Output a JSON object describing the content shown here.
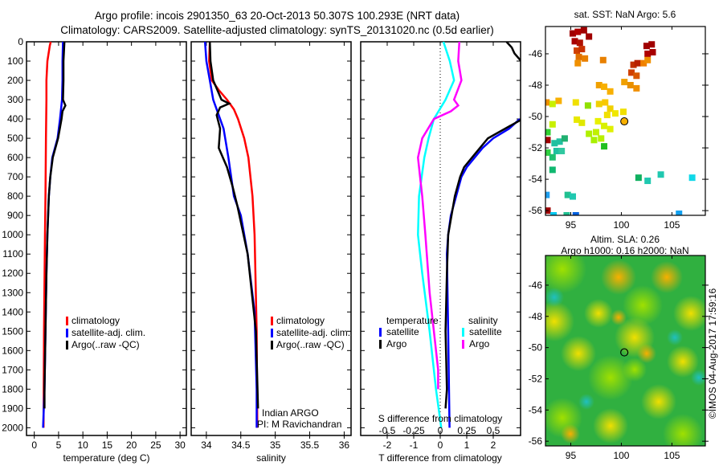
{
  "header": {
    "title_line1": "Argo profile: incois 2901350_63 20-Oct-2013 50.307S 100.293E (NRT data)",
    "title_line2": "Climatology: CARS2009. Satellite-adjusted climatology: synTS_20131020.nc (0.5d earlier)"
  },
  "colors": {
    "climatology": "#ff0000",
    "satellite": "#0000ff",
    "argo": "#000000",
    "sal_satellite": "#00ffff",
    "sal_argo": "#ff00ff"
  },
  "chart_data": [
    {
      "type": "line",
      "name": "temperature-profile",
      "xlabel": "temperature (deg C)",
      "ylabel": "",
      "xlim": [
        -1.6,
        31.3
      ],
      "ylim": [
        2040,
        0
      ],
      "xticks": [
        0,
        5,
        10,
        15,
        20,
        25,
        30
      ],
      "yticks": [
        0,
        100,
        200,
        300,
        400,
        500,
        600,
        700,
        800,
        900,
        1000,
        1100,
        1200,
        1300,
        1400,
        1500,
        1600,
        1700,
        1800,
        1900,
        2000
      ],
      "legend": {
        "placement": "bottom-center",
        "entries": [
          "climatology",
          "satellite-adj. clim.",
          "Argo(..raw -QC)"
        ]
      },
      "series": [
        {
          "name": "climatology",
          "color": "#ff0000",
          "depth": [
            0,
            20,
            100,
            200,
            300,
            500,
            800,
            1000,
            1500,
            2000
          ],
          "values": [
            3.4,
            3.2,
            2.7,
            2.5,
            2.5,
            2.4,
            2.3,
            2.2,
            2.0,
            1.9
          ]
        },
        {
          "name": "satellite-adj. clim.",
          "color": "#0000ff",
          "depth": [
            0,
            100,
            200,
            300,
            400,
            500,
            600,
            700,
            800,
            1000,
            1200,
            1500,
            1800,
            2000
          ],
          "values": [
            5.9,
            5.8,
            5.8,
            5.7,
            5.3,
            4.8,
            3.7,
            3.3,
            3.0,
            2.7,
            2.5,
            2.3,
            2.1,
            1.8
          ]
        },
        {
          "name": "Argo(..raw -QC)",
          "color": "#000000",
          "depth": [
            0,
            100,
            200,
            300,
            330,
            360,
            400,
            500,
            600,
            700,
            800,
            1000,
            1200,
            1500,
            1800,
            1900
          ],
          "values": [
            6.2,
            6.0,
            6.0,
            5.9,
            6.4,
            5.8,
            5.6,
            4.9,
            3.8,
            3.3,
            3.0,
            2.7,
            2.5,
            2.3,
            2.1,
            2.1
          ]
        }
      ]
    },
    {
      "type": "line",
      "name": "salinity-profile",
      "xlabel": "salinity",
      "xlim": [
        33.78,
        36.1
      ],
      "ylim": [
        2040,
        0
      ],
      "xticks": [
        34,
        34.5,
        35,
        35.5,
        36
      ],
      "legend": {
        "placement": "bottom-right",
        "entries": [
          "climatology",
          "satellite-adj. clim.",
          "Argo(..raw -QC)"
        ]
      },
      "annotations": [
        "Indian ARGO",
        "PI: M Ravichandran"
      ],
      "series": [
        {
          "name": "climatology",
          "color": "#ff0000",
          "depth": [
            0,
            100,
            200,
            250,
            300,
            350,
            400,
            500,
            600,
            800,
            1000,
            1500,
            2000
          ],
          "values": [
            34.05,
            34.04,
            34.08,
            34.18,
            34.3,
            34.4,
            34.46,
            34.55,
            34.61,
            34.67,
            34.7,
            34.73,
            34.74
          ]
        },
        {
          "name": "satellite-adj. clim.",
          "color": "#0000ff",
          "depth": [
            0,
            100,
            200,
            300,
            400,
            450,
            600,
            800,
            900,
            1100,
            1400,
            1800,
            2000
          ],
          "values": [
            33.98,
            34.0,
            34.05,
            34.1,
            34.2,
            34.25,
            34.32,
            34.4,
            34.5,
            34.6,
            34.7,
            34.73,
            34.73
          ]
        },
        {
          "name": "Argo(..raw -QC)",
          "color": "#000000",
          "depth": [
            0,
            100,
            200,
            300,
            320,
            340,
            380,
            450,
            550,
            650,
            750,
            850,
            1100,
            1500,
            1900
          ],
          "values": [
            34.05,
            34.06,
            34.1,
            34.22,
            34.33,
            34.2,
            34.15,
            34.2,
            34.18,
            34.3,
            34.38,
            34.45,
            34.6,
            34.72,
            34.75
          ]
        }
      ]
    },
    {
      "type": "line",
      "name": "difference-profile",
      "xlabel": "T difference from climatology",
      "x2label": "S difference from climatology",
      "xlim": [
        -3.0,
        3.03
      ],
      "ylim": [
        2040,
        0
      ],
      "xticks": [
        -2,
        -1,
        0,
        1,
        2
      ],
      "x2ticks": [
        -0.5,
        -0.25,
        0,
        0.25,
        0.5
      ],
      "x2tick_labels": [
        "-0.5",
        "-0.25",
        "0",
        "0.25",
        "0.5"
      ],
      "legend": {
        "placement": "bottom-center",
        "groups": [
          {
            "title": "temperature",
            "entries": [
              "satellite",
              "Argo"
            ]
          },
          {
            "title": "salinity",
            "entries": [
              "satellite",
              "Argo"
            ]
          }
        ]
      },
      "series": [
        {
          "name": "temperature satellite",
          "color": "#0000ff",
          "axis": "T",
          "depth": [
            400,
            450,
            500,
            550,
            600,
            650,
            700,
            800,
            900,
            1000,
            1100,
            1500,
            1800,
            2000
          ],
          "values": [
            3.0,
            2.6,
            2.0,
            1.6,
            1.3,
            1.0,
            0.8,
            0.6,
            0.4,
            0.3,
            0.25,
            0.3,
            0.33,
            0.35
          ]
        },
        {
          "name": "temperature Argo",
          "color": "#000000",
          "axis": "T",
          "depth": [
            0,
            30,
            60,
            100,
            200,
            300,
            400,
            500,
            550,
            600,
            650,
            700,
            800,
            1000,
            1200,
            1500,
            1800,
            1900
          ],
          "values": [
            2.5,
            2.7,
            2.8,
            3.05,
            3.1,
            3.1,
            3.1,
            1.8,
            1.5,
            1.2,
            0.9,
            0.75,
            0.55,
            0.3,
            0.25,
            0.2,
            0.25,
            0.2
          ]
        },
        {
          "name": "salinity satellite",
          "color": "#00ffff",
          "axis": "S",
          "depth": [
            0,
            100,
            200,
            300,
            400,
            500,
            600,
            800,
            1000,
            1200,
            1500,
            1800,
            2000
          ],
          "values": [
            0.03,
            0.09,
            0.13,
            0.05,
            -0.06,
            -0.11,
            -0.15,
            -0.2,
            -0.21,
            -0.17,
            -0.1,
            -0.04,
            0.01
          ]
        },
        {
          "name": "salinity Argo",
          "color": "#ff00ff",
          "axis": "S",
          "depth": [
            0,
            100,
            200,
            300,
            330,
            360,
            400,
            500,
            600,
            700,
            800,
            1000,
            1300,
            1500,
            1700,
            1800
          ],
          "values": [
            0.18,
            0.17,
            0.2,
            0.13,
            0.17,
            0.1,
            -0.06,
            -0.17,
            -0.21,
            -0.19,
            -0.17,
            -0.14,
            -0.1,
            -0.06,
            -0.02,
            -0.02
          ]
        }
      ]
    },
    {
      "type": "heatmap",
      "name": "sst-map",
      "title": "sat. SST: NaN Argo: 5.6",
      "xlim": [
        92.5,
        108.3
      ],
      "ylim": [
        -56.3,
        -44.26
      ],
      "xticks": [
        95,
        100,
        105
      ],
      "yticks": [
        -46,
        -48,
        -50,
        -52,
        -54,
        -56
      ],
      "argo_position": [
        100.293,
        -50.307
      ],
      "cells": [
        [
          95.2,
          -44.7,
          "#a00000"
        ],
        [
          95.7,
          -44.6,
          "#b00000"
        ],
        [
          96.3,
          -44.5,
          "#a00000"
        ],
        [
          96.8,
          -44.9,
          "#a00000"
        ],
        [
          95.4,
          -45.2,
          "#a80000"
        ],
        [
          95.9,
          -45.3,
          "#b01000"
        ],
        [
          95.6,
          -45.8,
          "#d04000"
        ],
        [
          96.1,
          -45.7,
          "#c83000"
        ],
        [
          102.5,
          -45.5,
          "#a00000"
        ],
        [
          103.0,
          -45.4,
          "#a00000"
        ],
        [
          102.6,
          -46.0,
          "#b00000"
        ],
        [
          103.1,
          -45.9,
          "#a80000"
        ],
        [
          95.8,
          -46.2,
          "#e07000"
        ],
        [
          96.4,
          -46.3,
          "#e88000"
        ],
        [
          95.7,
          -46.6,
          "#f09000"
        ],
        [
          98.2,
          -46.4,
          "#e88000"
        ],
        [
          101.2,
          -46.7,
          "#c03000"
        ],
        [
          101.6,
          -46.6,
          "#b82000"
        ],
        [
          101.0,
          -47.2,
          "#d04000"
        ],
        [
          101.5,
          -47.4,
          "#d85800"
        ],
        [
          102.2,
          -46.6,
          "#f08000"
        ],
        [
          102.6,
          -46.4,
          "#f09000"
        ],
        [
          97.8,
          -48.0,
          "#f0a000"
        ],
        [
          98.3,
          -48.1,
          "#f8b000"
        ],
        [
          100.3,
          -47.8,
          "#f0a000"
        ],
        [
          100.9,
          -48.0,
          "#e89000"
        ],
        [
          101.5,
          -48.2,
          "#f09000"
        ],
        [
          98.9,
          -48.4,
          "#f8b000"
        ],
        [
          92.6,
          -49.1,
          "#f09000"
        ],
        [
          93.8,
          -49.0,
          "#f8b000"
        ],
        [
          93.2,
          -49.2,
          "#c8f000"
        ],
        [
          95.5,
          -49.1,
          "#f0e000"
        ],
        [
          96.7,
          -49.3,
          "#90e000"
        ],
        [
          97.8,
          -49.2,
          "#f0d000"
        ],
        [
          98.4,
          -49.1,
          "#f8c800"
        ],
        [
          98.9,
          -49.5,
          "#f0d000"
        ],
        [
          98.6,
          -49.9,
          "#f0e000"
        ],
        [
          99.4,
          -49.8,
          "#f0e800"
        ],
        [
          100.2,
          -49.7,
          "#f0e000"
        ],
        [
          93.2,
          -50.5,
          "#c8f000"
        ],
        [
          95.6,
          -50.2,
          "#e8e800"
        ],
        [
          96.1,
          -50.4,
          "#e0e800"
        ],
        [
          97.7,
          -50.3,
          "#e8f000"
        ],
        [
          98.3,
          -50.6,
          "#d8f000"
        ],
        [
          98.9,
          -50.8,
          "#e0f000"
        ],
        [
          97.5,
          -51.0,
          "#c0f000"
        ],
        [
          96.8,
          -51.1,
          "#b0f000"
        ],
        [
          97.3,
          -51.5,
          "#a8f000"
        ],
        [
          98.0,
          -51.4,
          "#b8f000"
        ],
        [
          98.3,
          -51.9,
          "#20c020"
        ],
        [
          92.7,
          -51.0,
          "#30d030"
        ],
        [
          92.7,
          -51.5,
          "#a00000"
        ],
        [
          93.4,
          -51.7,
          "#20c0a0"
        ],
        [
          93.9,
          -51.6,
          "#20c0a0"
        ],
        [
          94.4,
          -51.4,
          "#20b070"
        ],
        [
          93.6,
          -52.2,
          "#20c0a0"
        ],
        [
          94.1,
          -52.2,
          "#30c8a0"
        ],
        [
          92.7,
          -52.3,
          "#30d040"
        ],
        [
          93.2,
          -52.6,
          "#20c070"
        ],
        [
          93.2,
          -53.4,
          "#10b870"
        ],
        [
          101.7,
          -53.9,
          "#10b060"
        ],
        [
          102.6,
          -54.1,
          "#20c8b0"
        ],
        [
          103.9,
          -53.7,
          "#20c8b0"
        ],
        [
          107.0,
          -53.9,
          "#10d8e8"
        ],
        [
          94.7,
          -55.0,
          "#20c090"
        ],
        [
          95.2,
          -55.1,
          "#20c8b0"
        ],
        [
          92.6,
          -55.0,
          "#20a0f0"
        ],
        [
          92.7,
          -56.0,
          "#a00000"
        ],
        [
          93.3,
          -56.3,
          "#00c8f0"
        ],
        [
          94.6,
          -56.3,
          "#20c090"
        ],
        [
          95.5,
          -56.3,
          "#0060e0"
        ],
        [
          105.7,
          -56.2,
          "#10a0f0"
        ]
      ]
    },
    {
      "type": "heatmap",
      "name": "sla-map",
      "title_line1": "Altim. SLA: 0.26",
      "title_line2": "Argo h1000: 0.16 h2000: NaN",
      "xlim": [
        92.5,
        108.3
      ],
      "ylim": [
        -56.3,
        -44.1
      ],
      "xticks": [
        95,
        100,
        105
      ],
      "yticks": [
        -46,
        -48,
        -50,
        -52,
        -54,
        -56
      ],
      "argo_position": [
        100.293,
        -50.307
      ]
    }
  ],
  "credit": "©IMOS 04-Aug-2017 17:59:16"
}
